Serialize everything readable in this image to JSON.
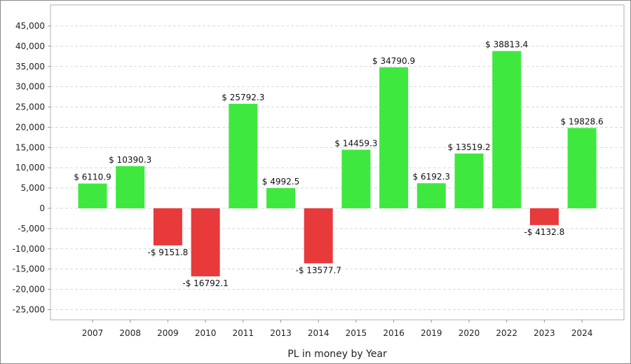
{
  "chart_data": {
    "type": "bar",
    "xlabel": "PL in money by Year",
    "ylabel": "",
    "ylim": [
      -28000,
      48000
    ],
    "yticks": [
      45000,
      40000,
      35000,
      30000,
      25000,
      20000,
      15000,
      10000,
      5000,
      0,
      -5000,
      -10000,
      -15000,
      -20000,
      -25000
    ],
    "ytick_labels": [
      "45,000",
      "40,000",
      "35,000",
      "30,000",
      "25,000",
      "20,000",
      "15,000",
      "10,000",
      "5,000",
      "0",
      "-5,000",
      "-10,000",
      "-15,000",
      "-20,000",
      "-25,000"
    ],
    "grid": true,
    "legend": "none",
    "colors": {
      "positive": "#3fe83f",
      "negative": "#e8393b",
      "grid": "#d8d8d8",
      "axis": "#999999"
    },
    "categories": [
      "2007",
      "2008",
      "2009",
      "2010",
      "2011",
      "2013",
      "2014",
      "2015",
      "2016",
      "2019",
      "2020",
      "2022",
      "2023",
      "2024"
    ],
    "values": [
      6110.9,
      10390.3,
      -9151.8,
      -16792.1,
      25792.3,
      4992.5,
      -13577.7,
      14459.3,
      34790.9,
      6192.3,
      13519.2,
      38813.4,
      -4132.8,
      19828.6
    ],
    "data_labels": [
      "$ 6110.9",
      "$ 10390.3",
      "-$ 9151.8",
      "-$ 16792.1",
      "$ 25792.3",
      "$ 4992.5",
      "-$ 13577.7",
      "$ 14459.3",
      "$ 34790.9",
      "$ 6192.3",
      "$ 13519.2",
      "$ 38813.4",
      "-$ 4132.8",
      "$ 19828.6"
    ]
  }
}
